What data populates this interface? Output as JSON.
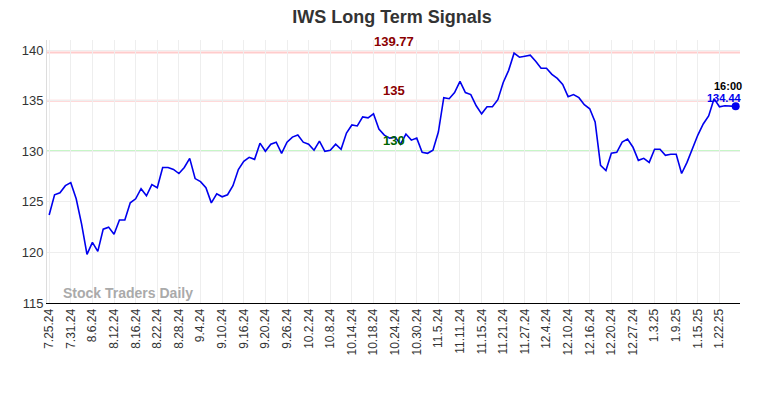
{
  "chart_data": {
    "type": "line",
    "title": "IWS Long Term Signals",
    "categories": [
      "7.25.24",
      null,
      null,
      null,
      "7.31.24",
      null,
      null,
      null,
      "8.6.24",
      null,
      null,
      null,
      "8.12.24",
      null,
      null,
      null,
      "8.16.24",
      null,
      null,
      null,
      "8.22.24",
      null,
      null,
      null,
      "8.28.24",
      null,
      null,
      null,
      "9.4.24",
      null,
      null,
      null,
      "9.10.24",
      null,
      null,
      null,
      "9.16.24",
      null,
      null,
      null,
      "9.20.24",
      null,
      null,
      null,
      "9.26.24",
      null,
      null,
      null,
      "10.2.24",
      null,
      null,
      null,
      "10.8.24",
      null,
      null,
      null,
      "10.14.24",
      null,
      null,
      null,
      "10.18.24",
      null,
      null,
      null,
      "10.24.24",
      null,
      null,
      null,
      "10.30.24",
      null,
      null,
      null,
      "11.5.24",
      null,
      null,
      null,
      "11.11.24",
      null,
      null,
      null,
      "11.15.24",
      null,
      null,
      null,
      "11.21.24",
      null,
      null,
      null,
      "11.27.24",
      null,
      null,
      null,
      "12.4.24",
      null,
      null,
      null,
      "12.10.24",
      null,
      null,
      null,
      "12.16.24",
      null,
      null,
      null,
      "12.20.24",
      null,
      null,
      null,
      "12.27.24",
      null,
      null,
      null,
      "1.3.25",
      null,
      null,
      null,
      "1.9.25",
      null,
      null,
      null,
      "1.15.25",
      null,
      null,
      null,
      "1.22.25",
      null,
      null,
      null
    ],
    "values": [
      123.7,
      125.7,
      125.9,
      126.6,
      126.9,
      125.3,
      122.8,
      119.8,
      121.0,
      120.1,
      122.3,
      122.5,
      121.8,
      123.2,
      123.2,
      124.9,
      125.3,
      126.3,
      125.6,
      126.7,
      126.4,
      128.4,
      128.4,
      128.2,
      127.8,
      128.4,
      129.3,
      127.3,
      127.0,
      126.4,
      124.9,
      125.8,
      125.5,
      125.7,
      126.6,
      128.2,
      129.0,
      129.4,
      129.2,
      130.8,
      130.0,
      130.7,
      130.9,
      129.8,
      130.9,
      131.4,
      131.6,
      130.9,
      130.7,
      130.1,
      131.0,
      130.0,
      130.1,
      130.7,
      130.2,
      131.8,
      132.6,
      132.5,
      133.4,
      133.3,
      133.7,
      132.2,
      131.6,
      131.3,
      131.4,
      130.7,
      131.7,
      131.1,
      131.3,
      129.9,
      129.8,
      130.1,
      131.9,
      135.3,
      135.2,
      135.8,
      136.9,
      135.8,
      135.6,
      134.5,
      133.7,
      134.4,
      134.4,
      135.1,
      136.8,
      138.0,
      139.7,
      139.3,
      139.4,
      139.5,
      138.9,
      138.2,
      138.2,
      137.6,
      137.2,
      136.6,
      135.4,
      135.6,
      135.3,
      134.6,
      134.2,
      132.9,
      128.6,
      128.1,
      129.8,
      129.9,
      130.9,
      131.2,
      130.4,
      129.1,
      129.3,
      128.9,
      130.2,
      130.2,
      129.6,
      129.7,
      129.7,
      127.8,
      128.9,
      130.2,
      131.6,
      132.7,
      133.5,
      135.2,
      134.4,
      134.5,
      134.5,
      134.44
    ],
    "color": "#0000ee",
    "ylim": [
      115,
      141
    ],
    "yticks": [
      115,
      120,
      125,
      130,
      135,
      140
    ],
    "grid": true,
    "reference_lines": [
      {
        "value": 139.77,
        "label": "139.77",
        "color": "#ffcccc"
      },
      {
        "value": 135,
        "label": "135",
        "color": "#ffcccc"
      },
      {
        "value": 130,
        "label": "130",
        "color": "#90ee90"
      }
    ],
    "last_point_time": "16:00",
    "watermark": "Stock Traders Daily"
  }
}
